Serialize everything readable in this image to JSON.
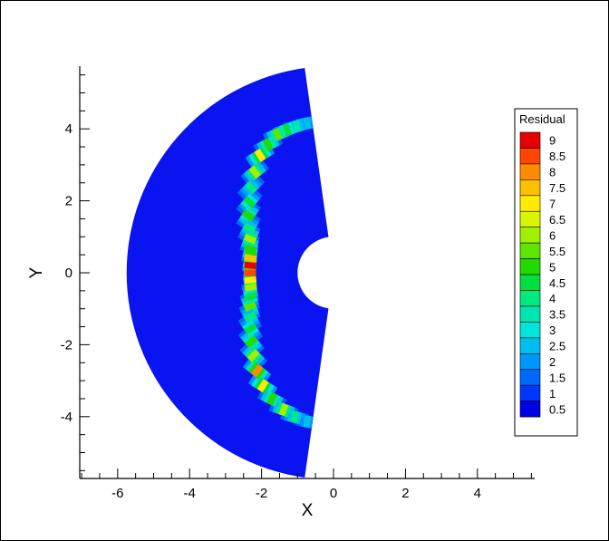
{
  "chart_data": {
    "type": "heatmap",
    "xlabel": "X",
    "ylabel": "Y",
    "xlim": [
      -7,
      5.5
    ],
    "ylim": [
      -5.75,
      5.75
    ],
    "x_ticks": [
      -6,
      -4,
      -2,
      0,
      2,
      4
    ],
    "y_ticks": [
      4,
      2,
      0,
      -2,
      -4
    ],
    "x_tick_labels": [
      "-6",
      "-4",
      "-2",
      "0",
      "2",
      "4"
    ],
    "y_tick_labels": [
      "4",
      "2",
      "0",
      "-2",
      "-4"
    ],
    "domain": {
      "shape": "annular sector",
      "inner_radius": 1.0,
      "outer_radius": 5.75,
      "theta_range_deg": [
        98,
        262
      ]
    },
    "field": "Residual",
    "legend": {
      "title": "Residual",
      "placement": "right",
      "levels": [
        "9",
        "8.5",
        "8",
        "7.5",
        "7",
        "6.5",
        "6",
        "5.5",
        "5",
        "4.5",
        "4",
        "3.5",
        "3",
        "2.5",
        "2",
        "1.5",
        "1",
        "0.5"
      ],
      "colors": [
        "#e60000",
        "#ff4500",
        "#ff8c00",
        "#ffbf00",
        "#ffea00",
        "#d9f500",
        "#a0f000",
        "#5ce600",
        "#22d900",
        "#00e040",
        "#00ea80",
        "#00e6b0",
        "#00e6dc",
        "#00bff0",
        "#0096ff",
        "#0068ff",
        "#0036ff",
        "#0000e6"
      ]
    },
    "background_color": "#0a14f0",
    "shock_band": {
      "points": [
        {
          "theta_deg": 100,
          "r": 4.22,
          "value": 2.5
        },
        {
          "theta_deg": 104,
          "r": 4.2,
          "value": 3.5
        },
        {
          "theta_deg": 108,
          "r": 4.18,
          "value": 4.5
        },
        {
          "theta_deg": 112,
          "r": 4.15,
          "value": 5.5
        },
        {
          "theta_deg": 117,
          "r": 4.0,
          "value": 5.0
        },
        {
          "theta_deg": 122,
          "r": 3.85,
          "value": 7.0
        },
        {
          "theta_deg": 128,
          "r": 3.55,
          "value": 6.0
        },
        {
          "theta_deg": 134,
          "r": 3.3,
          "value": 4.0
        },
        {
          "theta_deg": 140,
          "r": 3.05,
          "value": 4.5
        },
        {
          "theta_deg": 146,
          "r": 2.85,
          "value": 5.0
        },
        {
          "theta_deg": 152,
          "r": 2.65,
          "value": 4.0
        },
        {
          "theta_deg": 158,
          "r": 2.5,
          "value": 6.0
        },
        {
          "theta_deg": 164,
          "r": 2.4,
          "value": 5.0
        },
        {
          "theta_deg": 170,
          "r": 2.35,
          "value": 7.5
        },
        {
          "theta_deg": 175,
          "r": 2.32,
          "value": 9.0
        },
        {
          "theta_deg": 180,
          "r": 2.32,
          "value": 8.5
        },
        {
          "theta_deg": 185,
          "r": 2.32,
          "value": 7.0
        },
        {
          "theta_deg": 190,
          "r": 2.34,
          "value": 6.0
        },
        {
          "theta_deg": 196,
          "r": 2.4,
          "value": 4.5
        },
        {
          "theta_deg": 202,
          "r": 2.5,
          "value": 5.5
        },
        {
          "theta_deg": 208,
          "r": 2.62,
          "value": 4.0
        },
        {
          "theta_deg": 214,
          "r": 2.78,
          "value": 4.5
        },
        {
          "theta_deg": 220,
          "r": 2.98,
          "value": 5.0
        },
        {
          "theta_deg": 226,
          "r": 3.2,
          "value": 6.0
        },
        {
          "theta_deg": 232,
          "r": 3.45,
          "value": 8.0
        },
        {
          "theta_deg": 238,
          "r": 3.7,
          "value": 7.0
        },
        {
          "theta_deg": 244,
          "r": 3.9,
          "value": 5.0
        },
        {
          "theta_deg": 250,
          "r": 4.05,
          "value": 6.0
        },
        {
          "theta_deg": 255,
          "r": 4.15,
          "value": 4.0
        },
        {
          "theta_deg": 260,
          "r": 4.2,
          "value": 2.5
        }
      ]
    }
  }
}
